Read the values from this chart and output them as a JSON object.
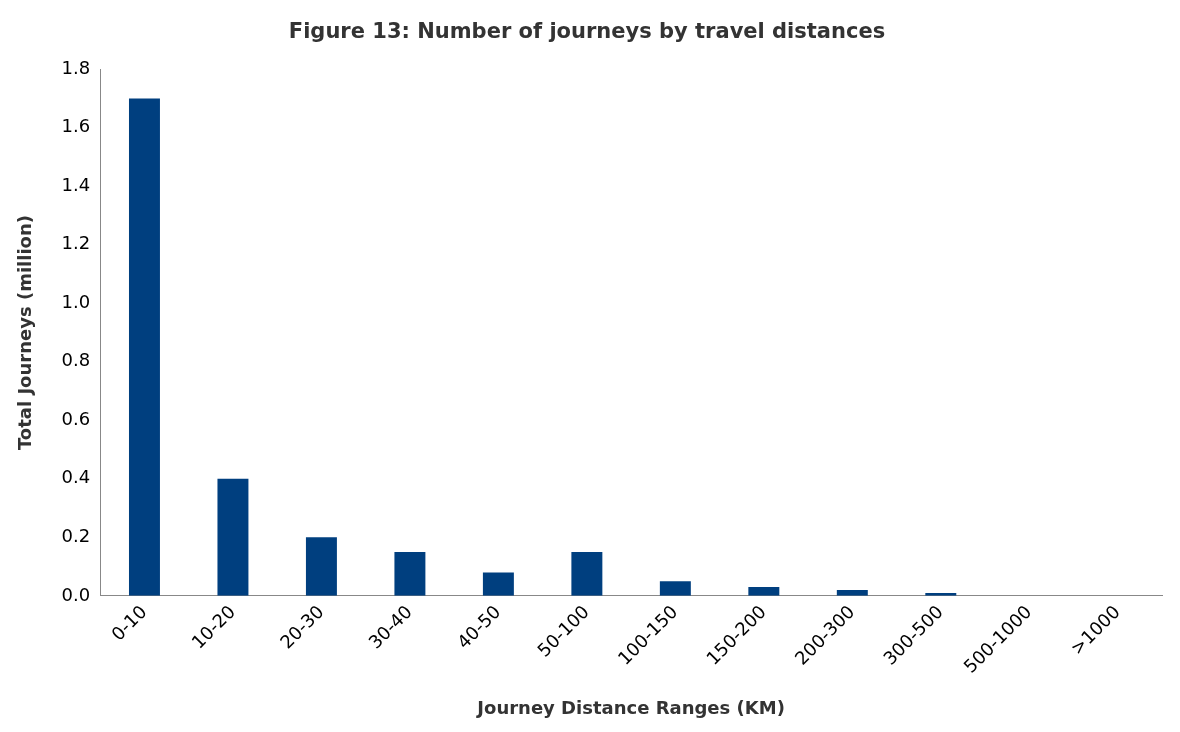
{
  "chart_data": {
    "type": "bar",
    "title": "Figure 13: Number of journeys by travel distances",
    "xlabel": "Journey Distance Ranges (KM)",
    "ylabel": "Total Journeys (million)",
    "categories": [
      "0-10",
      "10-20",
      "20-30",
      "30-40",
      "40-50",
      "50-100",
      "100-150",
      "150-200",
      "200-300",
      "300-500",
      "500-1000",
      ">1000"
    ],
    "values": [
      1.7,
      0.4,
      0.2,
      0.15,
      0.08,
      0.15,
      0.05,
      0.03,
      0.02,
      0.01,
      0,
      0
    ],
    "color": "#003f7f",
    "ylim": [
      0,
      1.8
    ],
    "yticks": [
      {
        "value": 0,
        "label": "0.0"
      },
      {
        "value": 0.2,
        "label": "0.2"
      },
      {
        "value": 0.4,
        "label": "0.4"
      },
      {
        "value": 0.6,
        "label": "0.6"
      },
      {
        "value": 0.8,
        "label": "0.8"
      },
      {
        "value": 1,
        "label": "1.0"
      },
      {
        "value": 1.2,
        "label": "1.2"
      },
      {
        "value": 1.4,
        "label": "1.4"
      },
      {
        "value": 1.6,
        "label": "1.6"
      },
      {
        "value": 1.8,
        "label": "1.8"
      }
    ]
  }
}
